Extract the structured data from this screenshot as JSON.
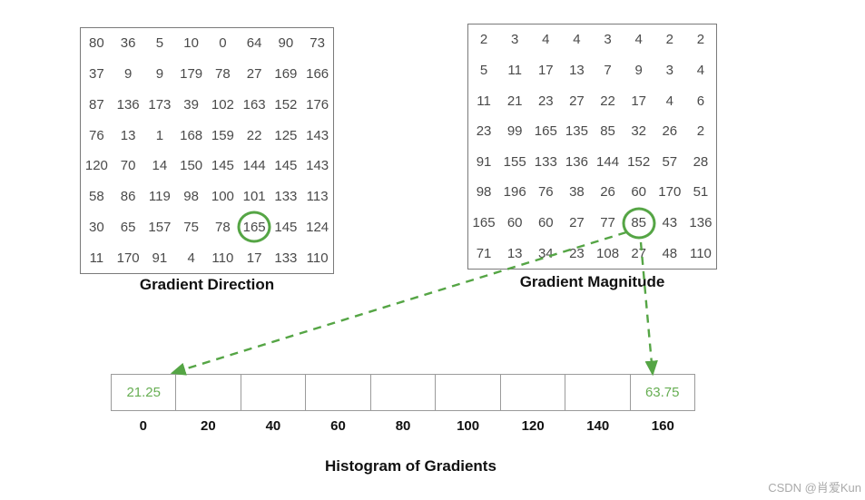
{
  "colors": {
    "green": "#55a545",
    "green_text": "#67ae53",
    "matrix_text": "#4a4a4a",
    "matrix_border": "#7a7a7a",
    "bin_border": "#9b9b9b",
    "watermark_gray": "#aaaaaa"
  },
  "matrices": [
    {
      "id": "gradient-direction",
      "label": "Gradient Direction",
      "values": [
        [
          80,
          36,
          5,
          10,
          0,
          64,
          90,
          73
        ],
        [
          37,
          9,
          9,
          179,
          78,
          27,
          169,
          166
        ],
        [
          87,
          136,
          173,
          39,
          102,
          163,
          152,
          176
        ],
        [
          76,
          13,
          1,
          168,
          159,
          22,
          125,
          143
        ],
        [
          120,
          70,
          14,
          150,
          145,
          144,
          145,
          143
        ],
        [
          58,
          86,
          119,
          98,
          100,
          101,
          133,
          113
        ],
        [
          30,
          65,
          157,
          75,
          78,
          165,
          145,
          124
        ],
        [
          11,
          170,
          91,
          4,
          110,
          17,
          133,
          110
        ]
      ],
      "circled": {
        "row": 6,
        "col": 5,
        "value": 165
      }
    },
    {
      "id": "gradient-magnitude",
      "label": "Gradient Magnitude",
      "values": [
        [
          2,
          3,
          4,
          4,
          3,
          4,
          2,
          2
        ],
        [
          5,
          11,
          17,
          13,
          7,
          9,
          3,
          4
        ],
        [
          11,
          21,
          23,
          27,
          22,
          17,
          4,
          6
        ],
        [
          23,
          99,
          165,
          135,
          85,
          32,
          26,
          2
        ],
        [
          91,
          155,
          133,
          136,
          144,
          152,
          57,
          28
        ],
        [
          98,
          196,
          76,
          38,
          26,
          60,
          170,
          51
        ],
        [
          165,
          60,
          60,
          27,
          77,
          85,
          43,
          136
        ],
        [
          71,
          13,
          34,
          23,
          108,
          27,
          48,
          110
        ]
      ],
      "circled": {
        "row": 6,
        "col": 5,
        "value": 85
      }
    }
  ],
  "histogram": {
    "title": "Histogram of Gradients",
    "bin_labels": [
      "0",
      "20",
      "40",
      "60",
      "80",
      "100",
      "120",
      "140",
      "160"
    ],
    "bin_values": [
      "21.25",
      "",
      "",
      "",
      "",
      "",
      "",
      "",
      "63.75"
    ]
  },
  "annotations": {
    "arrows": [
      {
        "name": "arrow-85-to-bin-0",
        "from": [
          690,
          256
        ],
        "to": [
          190,
          411
        ]
      },
      {
        "name": "arrow-85-to-bin-160",
        "from": [
          706,
          267
        ],
        "to": [
          719,
          412
        ]
      }
    ]
  },
  "watermark": "CSDN @肖爱Kun",
  "chart_data": {
    "type": "bar",
    "title": "Histogram of Gradients",
    "categories": [
      "0",
      "20",
      "40",
      "60",
      "80",
      "100",
      "120",
      "140",
      "160"
    ],
    "values": [
      21.25,
      0,
      0,
      0,
      0,
      0,
      0,
      0,
      63.75
    ],
    "xlabel": "",
    "ylabel": ""
  }
}
